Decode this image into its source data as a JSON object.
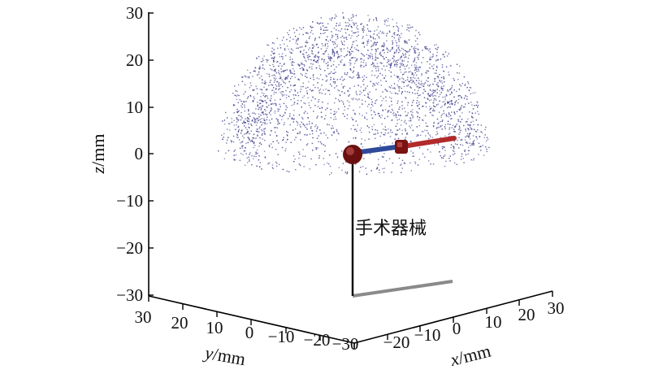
{
  "chart_data": {
    "type": "scatter",
    "projection": "3d",
    "zlabel_italic": "z",
    "zlabel_unit": "/mm",
    "ylabel_italic": "y",
    "ylabel_unit": "/mm",
    "xlabel_italic": "x",
    "xlabel_unit": "/mm",
    "zlim": [
      -30,
      30
    ],
    "ylim": [
      -30,
      30
    ],
    "xlim": [
      -30,
      30
    ],
    "z_ticks": [
      "30",
      "20",
      "10",
      "0",
      "−10",
      "−20",
      "−30"
    ],
    "y_ticks": [
      "30",
      "20",
      "10",
      "0",
      "−10",
      "−20",
      "−30"
    ],
    "x_ticks": [
      "−30",
      "−20",
      "−10",
      "0",
      "10",
      "20",
      "30"
    ],
    "grid": false,
    "workspace": {
      "shape": "hemisphere",
      "radius": 30,
      "z_range": [
        0,
        30
      ],
      "color": "#3a3a8c"
    },
    "instrument": {
      "label": "手术器械",
      "shaft_color": "#111111",
      "shadow_color": "#8a8a8a",
      "link1_color": "#2e4a9a",
      "link2_color": "#b22a2a",
      "joint_color": "#6b1010"
    }
  }
}
